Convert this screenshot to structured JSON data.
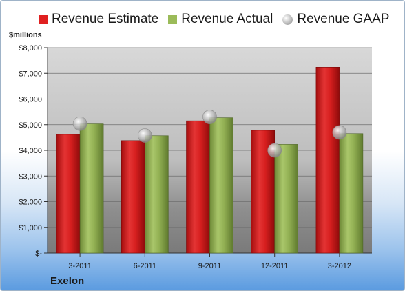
{
  "chart_data": {
    "type": "bar",
    "unit_label": "$millions",
    "company": "Exelon",
    "categories": [
      "3-2011",
      "6-2011",
      "9-2011",
      "12-2011",
      "3-2012"
    ],
    "series": [
      {
        "name": "Revenue Estimate",
        "kind": "bar",
        "color": "#e02020",
        "values": [
          4620,
          4380,
          5150,
          4780,
          7240
        ]
      },
      {
        "name": "Revenue Actual",
        "kind": "bar",
        "color": "#9bbb59",
        "values": [
          5030,
          4570,
          5270,
          4230,
          4650
        ]
      },
      {
        "name": "Revenue GAAP",
        "kind": "marker",
        "color": "#a6a6a6",
        "values": [
          5040,
          4580,
          5300,
          4000,
          4700
        ]
      }
    ],
    "y_ticks": [
      "$-",
      "$1,000",
      "$2,000",
      "$3,000",
      "$4,000",
      "$5,000",
      "$6,000",
      "$7,000",
      "$8,000"
    ],
    "ylim": [
      0,
      8000
    ],
    "legend_position": "top",
    "grid": true
  }
}
